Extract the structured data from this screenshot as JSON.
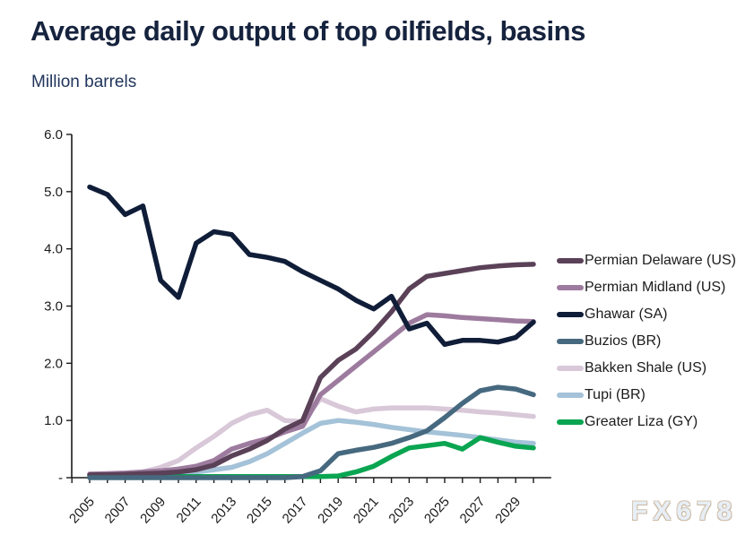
{
  "header": {
    "title": "Average daily output of top oilfields, basins",
    "subtitle": "Million barrels"
  },
  "watermark": {
    "text": "FX678"
  },
  "colors": {
    "title_text": "#16233e",
    "axis": "#1a1a1a",
    "tick_text": "#1a1a1a",
    "watermark_fill": "#e7eef6",
    "watermark_outline": "#cbb9a4"
  },
  "chart_data": {
    "type": "line",
    "title": "Average daily output of top oilfields, basins",
    "ylabel": "Million barrels",
    "xlabel": "",
    "grid": false,
    "legend_position": "right",
    "ylim": [
      0,
      6
    ],
    "x": [
      2005,
      2006,
      2007,
      2008,
      2009,
      2010,
      2011,
      2012,
      2013,
      2014,
      2015,
      2016,
      2017,
      2018,
      2019,
      2020,
      2021,
      2022,
      2023,
      2024,
      2025,
      2026,
      2027,
      2028,
      2029,
      2030
    ],
    "x_tick_labels": [
      "2005",
      "2007",
      "2009",
      "2011",
      "2013",
      "2015",
      "2017",
      "2019",
      "2021",
      "2023",
      "2025",
      "2027",
      "2029"
    ],
    "y_ticks": [
      {
        "value": 6,
        "label": "6.0"
      },
      {
        "value": 5,
        "label": "5.0"
      },
      {
        "value": 4,
        "label": "4.0"
      },
      {
        "value": 3,
        "label": "3.0"
      },
      {
        "value": 2,
        "label": "2.0"
      },
      {
        "value": 1,
        "label": "1.0"
      },
      {
        "value": 0,
        "label": "-"
      }
    ],
    "series": [
      {
        "name": "Permian Delaware (US)",
        "color": "#5a4158",
        "values": [
          0.05,
          0.05,
          0.06,
          0.07,
          0.08,
          0.1,
          0.14,
          0.22,
          0.38,
          0.5,
          0.65,
          0.85,
          1.0,
          1.75,
          2.05,
          2.25,
          2.55,
          2.9,
          3.3,
          3.52,
          3.57,
          3.62,
          3.67,
          3.7,
          3.72,
          3.73
        ]
      },
      {
        "name": "Permian Midland (US)",
        "color": "#9d7b9e",
        "values": [
          0.06,
          0.07,
          0.08,
          0.1,
          0.12,
          0.15,
          0.2,
          0.3,
          0.5,
          0.6,
          0.68,
          0.8,
          0.9,
          1.45,
          1.7,
          1.95,
          2.2,
          2.45,
          2.7,
          2.85,
          2.83,
          2.8,
          2.78,
          2.76,
          2.74,
          2.73
        ]
      },
      {
        "name": "Ghawar (SA)",
        "color": "#101d38",
        "values": [
          5.08,
          4.95,
          4.6,
          4.75,
          3.45,
          3.15,
          4.1,
          4.3,
          4.25,
          3.9,
          3.85,
          3.78,
          3.6,
          3.45,
          3.3,
          3.1,
          2.95,
          3.17,
          2.6,
          2.7,
          2.33,
          2.4,
          2.4,
          2.37,
          2.45,
          2.72
        ]
      },
      {
        "name": "Buzios (BR)",
        "color": "#46697f",
        "values": [
          0,
          0,
          0,
          0,
          0,
          0,
          0,
          0,
          0,
          0,
          0,
          0,
          0.02,
          0.12,
          0.42,
          0.48,
          0.53,
          0.6,
          0.7,
          0.82,
          1.05,
          1.3,
          1.52,
          1.58,
          1.55,
          1.45
        ]
      },
      {
        "name": "Bakken Shale (US)",
        "color": "#d8c8d8",
        "values": [
          0.07,
          0.07,
          0.08,
          0.1,
          0.18,
          0.3,
          0.52,
          0.72,
          0.95,
          1.1,
          1.18,
          1.0,
          0.98,
          1.38,
          1.25,
          1.15,
          1.2,
          1.22,
          1.22,
          1.22,
          1.2,
          1.18,
          1.15,
          1.13,
          1.1,
          1.07
        ]
      },
      {
        "name": "Tupi (BR)",
        "color": "#a4c2d8",
        "values": [
          0.02,
          0.02,
          0.03,
          0.03,
          0.05,
          0.07,
          0.1,
          0.14,
          0.18,
          0.28,
          0.42,
          0.6,
          0.78,
          0.95,
          1.0,
          0.97,
          0.93,
          0.88,
          0.84,
          0.8,
          0.77,
          0.74,
          0.7,
          0.66,
          0.62,
          0.6
        ]
      },
      {
        "name": "Greater Liza (GY)",
        "color": "#0aa551",
        "values": [
          0.02,
          0.02,
          0.02,
          0.02,
          0.02,
          0.02,
          0.02,
          0.02,
          0.02,
          0.02,
          0.02,
          0.02,
          0.02,
          0.02,
          0.03,
          0.1,
          0.2,
          0.37,
          0.52,
          0.56,
          0.6,
          0.5,
          0.7,
          0.62,
          0.55,
          0.52
        ]
      }
    ],
    "draw_order": [
      "Bakken Shale (US)",
      "Tupi (BR)",
      "Greater Liza (GY)",
      "Permian Midland (US)",
      "Permian Delaware (US)",
      "Buzios (BR)",
      "Ghawar (SA)"
    ]
  }
}
